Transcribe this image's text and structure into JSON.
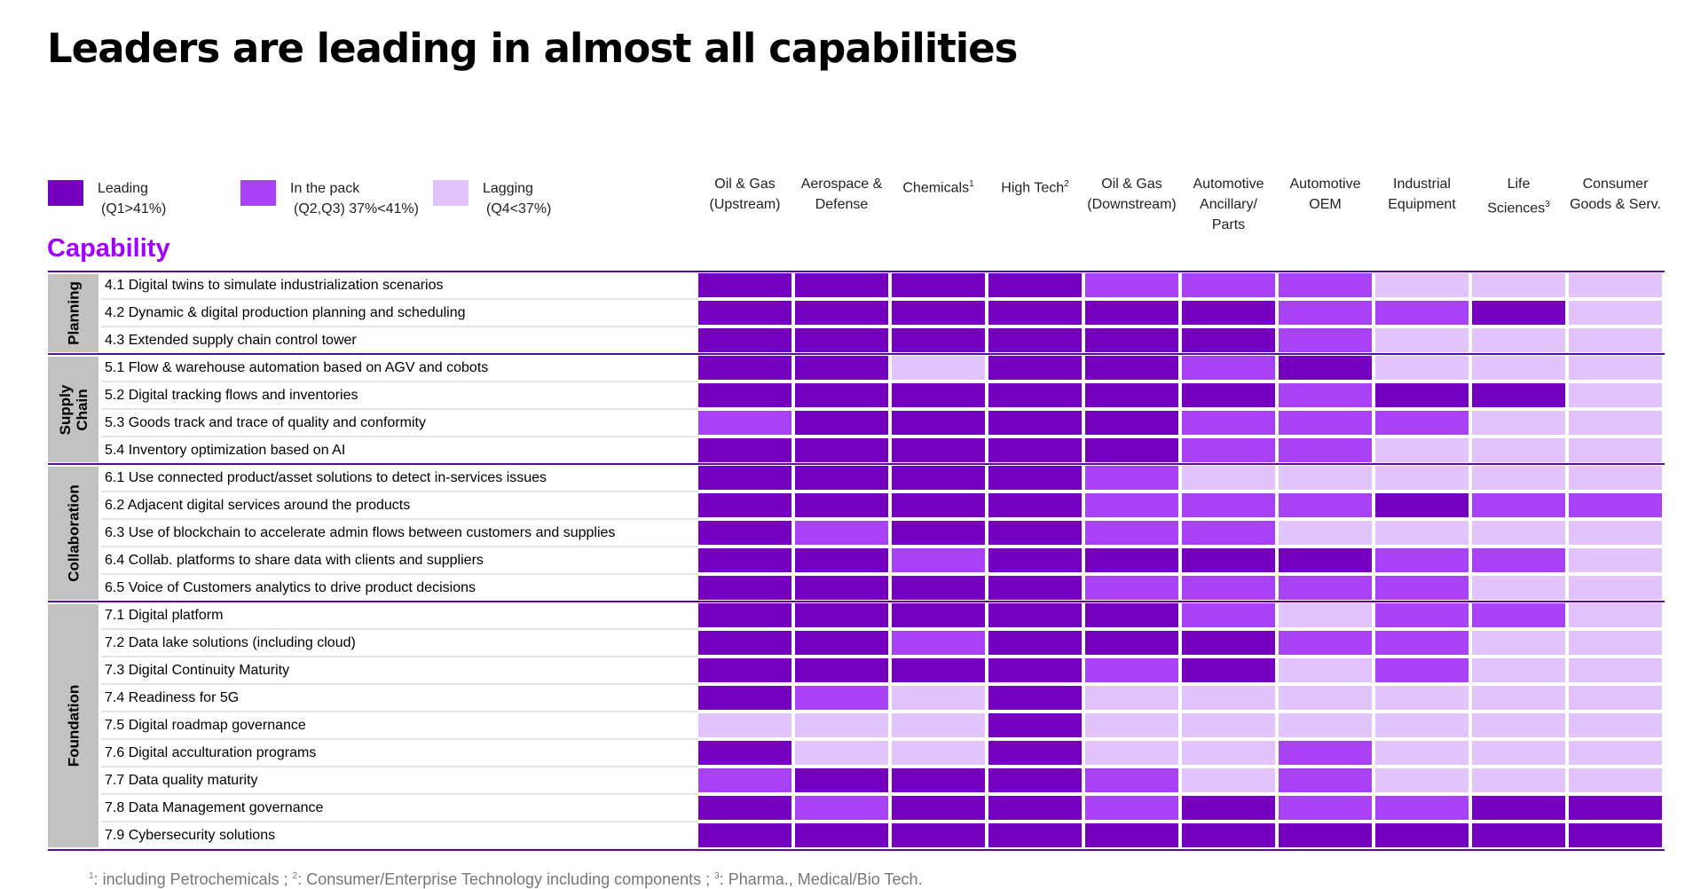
{
  "title": "Leaders are leading in almost all capabilities",
  "colors": {
    "leading": "#7500c0",
    "in_the_pack": "#a942f7",
    "lagging": "#e3c3fb",
    "accent": "#a100ff",
    "divider": "#5a0aa0"
  },
  "legend": [
    {
      "key": "L",
      "color_key": "leading",
      "line1": "Leading",
      "line2": "(Q1>41%)"
    },
    {
      "key": "P",
      "color_key": "in_the_pack",
      "line1": "In the pack",
      "line2": "(Q2,Q3) 37%<41%)"
    },
    {
      "key": "G",
      "color_key": "lagging",
      "line1": "Lagging",
      "line2": "(Q4<37%)"
    }
  ],
  "capability_label": "Capability",
  "footnote": {
    "s1": "1",
    "t1": ": including Petrochemicals ; ",
    "s2": "2",
    "t2": ": Consumer/Enterprise Technology including components ; ",
    "s3": "3",
    "t3": ": Pharma., Medical/Bio Tech."
  },
  "chart_data": {
    "type": "heatmap",
    "title": "Leaders are leading in almost all capabilities",
    "legend_placement": "top-left",
    "scale": {
      "L": "Leading (Q1>41%)",
      "P": "In the pack (Q2,Q3) 37%<41%)",
      "G": "Lagging (Q4<37%)"
    },
    "columns": [
      {
        "lines": [
          "Oil & Gas",
          "(Upstream)"
        ],
        "sup": ""
      },
      {
        "lines": [
          "Aerospace &",
          "Defense"
        ],
        "sup": ""
      },
      {
        "lines": [
          "Chemicals"
        ],
        "sup": "1"
      },
      {
        "lines": [
          "High Tech"
        ],
        "sup": "2"
      },
      {
        "lines": [
          "Oil & Gas",
          "(Downstream)"
        ],
        "sup": ""
      },
      {
        "lines": [
          "Automotive",
          "Ancillary/",
          "Parts"
        ],
        "sup": ""
      },
      {
        "lines": [
          "Automotive",
          "OEM"
        ],
        "sup": ""
      },
      {
        "lines": [
          "Industrial",
          "Equipment"
        ],
        "sup": ""
      },
      {
        "lines": [
          "Life",
          "Sciences"
        ],
        "sup": "3"
      },
      {
        "lines": [
          "Consumer",
          "Goods & Serv."
        ],
        "sup": ""
      }
    ],
    "groups": [
      {
        "lines": [
          "Planning"
        ],
        "rows": [
          {
            "label": "4.1 Digital twins to simulate industrialization scenarios",
            "values": [
              "L",
              "L",
              "L",
              "L",
              "P",
              "P",
              "P",
              "G",
              "G",
              "G"
            ]
          },
          {
            "label": "4.2 Dynamic & digital production planning and scheduling",
            "values": [
              "L",
              "L",
              "L",
              "L",
              "L",
              "L",
              "P",
              "P",
              "L",
              "G"
            ]
          },
          {
            "label": "4.3 Extended supply chain control tower",
            "values": [
              "L",
              "L",
              "L",
              "L",
              "L",
              "L",
              "P",
              "G",
              "G",
              "G"
            ]
          }
        ]
      },
      {
        "lines": [
          "Supply",
          "Chain"
        ],
        "rows": [
          {
            "label": "5.1 Flow & warehouse automation based on AGV and cobots",
            "values": [
              "L",
              "L",
              "G",
              "L",
              "L",
              "P",
              "L",
              "G",
              "G",
              "G"
            ]
          },
          {
            "label": "5.2 Digital tracking flows and inventories",
            "values": [
              "L",
              "L",
              "L",
              "L",
              "L",
              "L",
              "P",
              "L",
              "L",
              "G"
            ]
          },
          {
            "label": "5.3 Goods track and trace of quality and conformity",
            "values": [
              "P",
              "L",
              "L",
              "L",
              "L",
              "P",
              "P",
              "P",
              "G",
              "G"
            ]
          },
          {
            "label": "5.4 Inventory optimization based on AI",
            "values": [
              "L",
              "L",
              "L",
              "L",
              "L",
              "P",
              "P",
              "G",
              "G",
              "G"
            ]
          }
        ]
      },
      {
        "lines": [
          "Collaboration"
        ],
        "rows": [
          {
            "label": "6.1 Use connected product/asset solutions to detect in-services issues",
            "values": [
              "L",
              "L",
              "L",
              "L",
              "P",
              "G",
              "G",
              "G",
              "G",
              "G"
            ]
          },
          {
            "label": "6.2 Adjacent digital services around the products",
            "values": [
              "L",
              "L",
              "L",
              "L",
              "P",
              "P",
              "P",
              "L",
              "P",
              "P"
            ]
          },
          {
            "label": "6.3 Use of blockchain to accelerate admin flows between customers and supplies",
            "values": [
              "L",
              "P",
              "L",
              "L",
              "P",
              "P",
              "G",
              "G",
              "G",
              "G"
            ]
          },
          {
            "label": "6.4 Collab. platforms to share data with clients and suppliers",
            "values": [
              "L",
              "L",
              "P",
              "L",
              "L",
              "L",
              "L",
              "P",
              "P",
              "G"
            ]
          },
          {
            "label": "6.5 Voice of Customers analytics to drive product decisions",
            "values": [
              "L",
              "L",
              "L",
              "L",
              "P",
              "P",
              "P",
              "P",
              "G",
              "G"
            ]
          }
        ]
      },
      {
        "lines": [
          "Foundation"
        ],
        "rows": [
          {
            "label": "7.1 Digital platform",
            "values": [
              "L",
              "L",
              "L",
              "L",
              "L",
              "P",
              "G",
              "P",
              "P",
              "G"
            ]
          },
          {
            "label": "7.2 Data lake solutions (including cloud)",
            "values": [
              "L",
              "L",
              "P",
              "L",
              "L",
              "L",
              "P",
              "P",
              "G",
              "G"
            ]
          },
          {
            "label": "7.3 Digital Continuity Maturity",
            "values": [
              "L",
              "L",
              "L",
              "L",
              "P",
              "L",
              "G",
              "P",
              "G",
              "G"
            ]
          },
          {
            "label": "7.4 Readiness for 5G",
            "values": [
              "L",
              "P",
              "G",
              "L",
              "G",
              "G",
              "G",
              "G",
              "G",
              "G"
            ]
          },
          {
            "label": "7.5 Digital roadmap governance",
            "values": [
              "G",
              "G",
              "G",
              "L",
              "G",
              "G",
              "G",
              "G",
              "G",
              "G"
            ]
          },
          {
            "label": "7.6 Digital acculturation programs",
            "values": [
              "L",
              "G",
              "G",
              "L",
              "G",
              "G",
              "P",
              "G",
              "G",
              "G"
            ]
          },
          {
            "label": "7.7 Data quality maturity",
            "values": [
              "P",
              "L",
              "L",
              "L",
              "P",
              "G",
              "P",
              "G",
              "G",
              "G"
            ]
          },
          {
            "label": "7.8 Data Management governance",
            "values": [
              "L",
              "P",
              "L",
              "L",
              "P",
              "L",
              "P",
              "P",
              "L",
              "L"
            ]
          },
          {
            "label": "7.9 Cybersecurity solutions",
            "values": [
              "L",
              "L",
              "L",
              "L",
              "L",
              "L",
              "L",
              "L",
              "L",
              "L"
            ]
          }
        ]
      }
    ]
  }
}
